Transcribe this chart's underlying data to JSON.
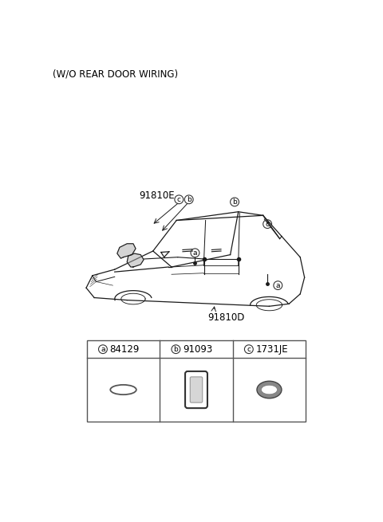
{
  "title_text": "(W/O REAR DOOR WIRING)",
  "label_91810E": "91810E",
  "label_91810D": "91810D",
  "bg_color": "#ffffff",
  "text_color": "#000000",
  "line_color": "#1a1a1a",
  "part_a_label": "a",
  "part_b_label": "b",
  "part_c_label": "c",
  "part_a_num": "84129",
  "part_b_num": "91093",
  "part_c_num": "1731JE"
}
